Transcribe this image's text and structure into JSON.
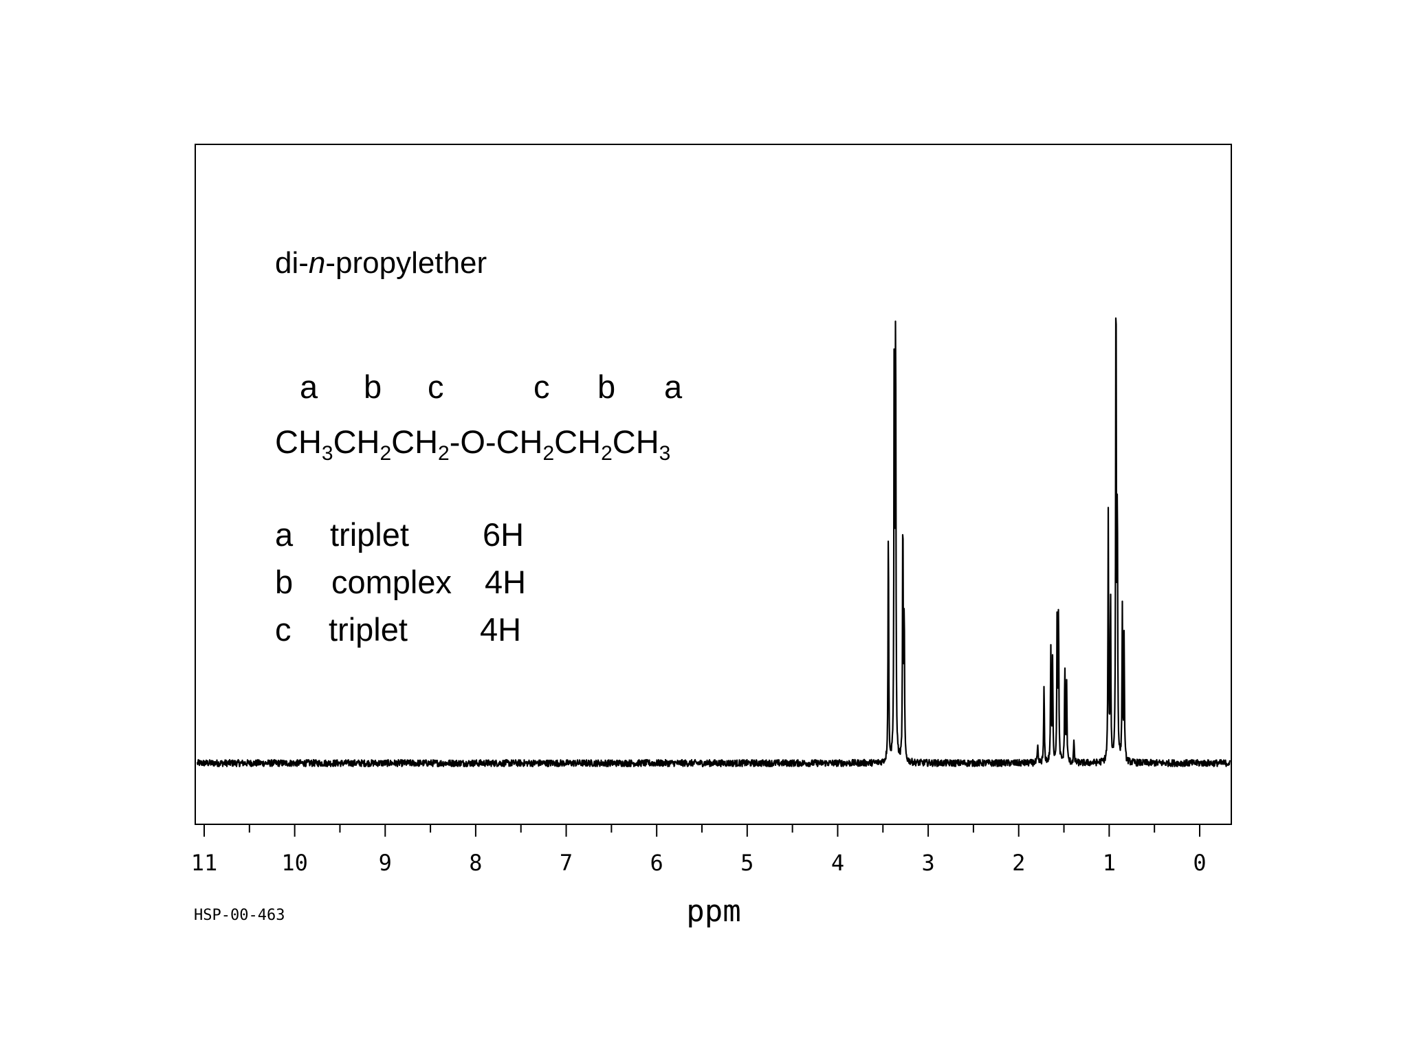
{
  "chart_data": {
    "type": "line",
    "title": "di-n-propylether",
    "xlabel": "ppm",
    "ylabel": "",
    "xlim": [
      11.1,
      -0.35
    ],
    "x_reversed": true,
    "grid": false,
    "tick_labels": [
      "11",
      "10",
      "9",
      "8",
      "7",
      "6",
      "5",
      "4",
      "3",
      "2",
      "1",
      "0"
    ],
    "structure": {
      "letters": [
        "a",
        "b",
        "c",
        "c",
        "b",
        "a"
      ],
      "formula_parts": [
        "CH",
        "3",
        "CH",
        "2",
        "CH",
        "2",
        "-O-CH",
        "2",
        "CH",
        "2",
        "CH",
        "3"
      ]
    },
    "assignments": [
      {
        "label": "a",
        "multiplicity": "triplet",
        "integration": "6H"
      },
      {
        "label": "b",
        "multiplicity": "complex",
        "integration": "4H"
      },
      {
        "label": "c",
        "multiplicity": "triplet",
        "integration": "4H"
      }
    ],
    "series": [
      {
        "peaks": [
          {
            "ppm": 3.44,
            "height": 0.43
          },
          {
            "ppm": 3.375,
            "height": 0.8
          },
          {
            "ppm": 3.36,
            "height": 0.8
          },
          {
            "ppm": 3.28,
            "height": 0.45
          },
          {
            "ppm": 3.265,
            "height": 0.26
          },
          {
            "ppm": 1.79,
            "height": 0.03
          },
          {
            "ppm": 1.72,
            "height": 0.14
          },
          {
            "ppm": 1.645,
            "height": 0.2
          },
          {
            "ppm": 1.625,
            "height": 0.18
          },
          {
            "ppm": 1.575,
            "height": 0.27
          },
          {
            "ppm": 1.56,
            "height": 0.27
          },
          {
            "ppm": 1.49,
            "height": 0.17
          },
          {
            "ppm": 1.47,
            "height": 0.14
          },
          {
            "ppm": 1.39,
            "height": 0.04
          },
          {
            "ppm": 1.01,
            "height": 0.44
          },
          {
            "ppm": 0.985,
            "height": 0.3
          },
          {
            "ppm": 0.925,
            "height": 0.9
          },
          {
            "ppm": 0.91,
            "height": 0.45
          },
          {
            "ppm": 0.855,
            "height": 0.27
          },
          {
            "ppm": 0.835,
            "height": 0.22
          }
        ]
      }
    ]
  },
  "footnote": "HSP-00-463",
  "colors": {
    "trace": "#000000",
    "background": "#ffffff"
  }
}
